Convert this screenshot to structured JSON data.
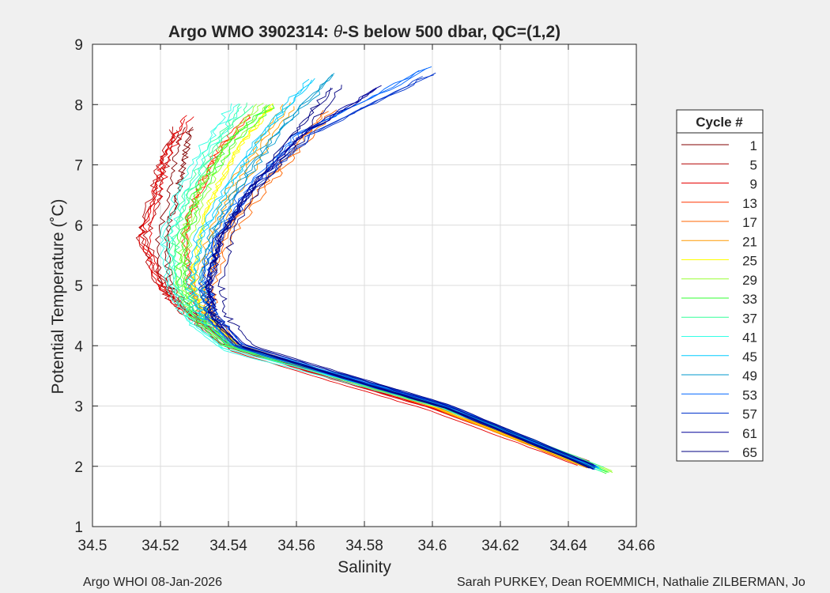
{
  "chart_data": {
    "type": "line",
    "title_prefix": "Argo WMO 3902314: ",
    "title_symbol": "θ",
    "title_suffix": "-S below 500 dbar,  QC=(1,2)",
    "xlabel": "Salinity",
    "ylabel": "Potential Temperature (˚C)",
    "xlim": [
      34.5,
      34.66
    ],
    "ylim": [
      1,
      9
    ],
    "xticks": [
      "34.5",
      "34.52",
      "34.54",
      "34.56",
      "34.58",
      "34.6",
      "34.62",
      "34.64",
      "34.66"
    ],
    "yticks": [
      "1",
      "2",
      "3",
      "4",
      "5",
      "6",
      "7",
      "8",
      "9"
    ],
    "grid": true,
    "legend": {
      "title": "Cycle #",
      "placement": "right-outside",
      "entries": [
        {
          "label": "1",
          "color": "#800000"
        },
        {
          "label": "5",
          "color": "#b30000"
        },
        {
          "label": "9",
          "color": "#e60000"
        },
        {
          "label": "13",
          "color": "#ff3300"
        },
        {
          "label": "17",
          "color": "#ff6600"
        },
        {
          "label": "21",
          "color": "#ff9900"
        },
        {
          "label": "25",
          "color": "#ffff00"
        },
        {
          "label": "29",
          "color": "#99ff33"
        },
        {
          "label": "33",
          "color": "#33ff33"
        },
        {
          "label": "37",
          "color": "#33ff99"
        },
        {
          "label": "41",
          "color": "#33ffe6"
        },
        {
          "label": "45",
          "color": "#00ccff"
        },
        {
          "label": "49",
          "color": "#0099cc"
        },
        {
          "label": "53",
          "color": "#0066ff"
        },
        {
          "label": "57",
          "color": "#0033cc"
        },
        {
          "label": "61",
          "color": "#000099"
        },
        {
          "label": "65",
          "color": "#000080"
        }
      ]
    },
    "series": [
      {
        "name": "1",
        "color": "#800000",
        "x": [
          34.647,
          34.6,
          34.57,
          34.54,
          34.528,
          34.522,
          34.521,
          34.524,
          34.526,
          34.528
        ],
        "y": [
          2.0,
          3.0,
          3.5,
          4.0,
          4.6,
          5.0,
          5.8,
          6.5,
          7.0,
          7.6
        ]
      },
      {
        "name": "5",
        "color": "#b30000",
        "x": [
          34.646,
          34.599,
          34.569,
          34.539,
          34.526,
          34.52,
          34.514,
          34.518,
          34.52,
          34.524
        ],
        "y": [
          2.05,
          3.0,
          3.5,
          4.0,
          4.6,
          5.0,
          5.8,
          6.5,
          7.0,
          7.6
        ]
      },
      {
        "name": "9",
        "color": "#e60000",
        "x": [
          34.643,
          34.6,
          34.57,
          34.541,
          34.527,
          34.52,
          34.515,
          34.519,
          34.522,
          34.528
        ],
        "y": [
          2.05,
          2.95,
          3.45,
          3.95,
          4.6,
          5.0,
          5.8,
          6.6,
          7.2,
          7.8
        ]
      },
      {
        "name": "13",
        "color": "#ff3300",
        "x": [
          34.644,
          34.601,
          34.571,
          34.541,
          34.53,
          34.528,
          34.526,
          34.53,
          34.535,
          34.545
        ],
        "y": [
          2.05,
          3.0,
          3.5,
          4.0,
          4.6,
          5.0,
          5.8,
          6.5,
          7.1,
          7.8
        ]
      },
      {
        "name": "17",
        "color": "#ff6600",
        "x": [
          34.645,
          34.6,
          34.571,
          34.542,
          34.535,
          34.535,
          34.54,
          34.55,
          34.56,
          34.57
        ],
        "y": [
          2.0,
          3.0,
          3.5,
          4.0,
          4.5,
          5.0,
          5.8,
          6.6,
          7.2,
          7.9
        ]
      },
      {
        "name": "21",
        "color": "#ff9900",
        "x": [
          34.645,
          34.6,
          34.571,
          34.542,
          34.534,
          34.532,
          34.536,
          34.542,
          34.55,
          34.558
        ],
        "y": [
          2.0,
          3.0,
          3.5,
          4.0,
          4.5,
          5.0,
          5.8,
          6.6,
          7.3,
          8.0
        ]
      },
      {
        "name": "25",
        "color": "#ffff00",
        "x": [
          34.646,
          34.601,
          34.572,
          34.541,
          34.532,
          34.528,
          34.53,
          34.535,
          34.542,
          34.552
        ],
        "y": [
          2.0,
          3.0,
          3.5,
          4.0,
          4.5,
          5.0,
          5.8,
          6.6,
          7.3,
          8.0
        ]
      },
      {
        "name": "29",
        "color": "#99ff33",
        "x": [
          34.653,
          34.602,
          34.571,
          34.54,
          34.53,
          34.526,
          34.528,
          34.533,
          34.54,
          34.55
        ],
        "y": [
          1.9,
          3.0,
          3.5,
          4.0,
          4.5,
          5.0,
          5.8,
          6.6,
          7.3,
          8.0
        ]
      },
      {
        "name": "33",
        "color": "#33ff33",
        "x": [
          34.652,
          34.603,
          34.571,
          34.54,
          34.531,
          34.527,
          34.527,
          34.532,
          34.54,
          34.553
        ],
        "y": [
          1.9,
          3.0,
          3.5,
          4.0,
          4.5,
          5.0,
          5.8,
          6.6,
          7.3,
          8.0
        ]
      },
      {
        "name": "37",
        "color": "#33ff99",
        "x": [
          34.65,
          34.602,
          34.57,
          34.539,
          34.528,
          34.524,
          34.523,
          34.528,
          34.535,
          34.545
        ],
        "y": [
          1.95,
          3.0,
          3.5,
          4.0,
          4.5,
          5.0,
          5.8,
          6.6,
          7.3,
          8.0
        ]
      },
      {
        "name": "41",
        "color": "#33ffe6",
        "x": [
          34.649,
          34.602,
          34.569,
          34.538,
          34.528,
          34.522,
          34.521,
          34.526,
          34.533,
          34.542
        ],
        "y": [
          1.95,
          3.0,
          3.5,
          3.95,
          4.4,
          5.0,
          5.8,
          6.6,
          7.3,
          8.0
        ]
      },
      {
        "name": "45",
        "color": "#00ccff",
        "x": [
          34.649,
          34.603,
          34.572,
          34.541,
          34.532,
          34.529,
          34.532,
          34.54,
          34.55,
          34.565
        ],
        "y": [
          1.95,
          3.0,
          3.5,
          4.0,
          4.5,
          5.0,
          5.8,
          6.6,
          7.5,
          8.4
        ]
      },
      {
        "name": "49",
        "color": "#0099cc",
        "x": [
          34.648,
          34.603,
          34.572,
          34.542,
          34.533,
          34.531,
          34.534,
          34.542,
          34.553,
          34.57
        ],
        "y": [
          1.98,
          3.0,
          3.5,
          4.0,
          4.5,
          5.0,
          5.8,
          6.6,
          7.5,
          8.5
        ]
      },
      {
        "name": "53",
        "color": "#0066ff",
        "x": [
          34.648,
          34.604,
          34.573,
          34.543,
          34.535,
          34.533,
          34.536,
          34.545,
          34.56,
          34.598
        ],
        "y": [
          1.98,
          3.0,
          3.5,
          4.0,
          4.5,
          5.0,
          5.8,
          6.6,
          7.5,
          8.6
        ]
      },
      {
        "name": "57",
        "color": "#0033cc",
        "x": [
          34.648,
          34.604,
          34.574,
          34.544,
          34.536,
          34.534,
          34.538,
          34.548,
          34.565,
          34.6
        ],
        "y": [
          1.98,
          3.0,
          3.5,
          4.0,
          4.5,
          5.0,
          5.8,
          6.6,
          7.5,
          8.5
        ]
      },
      {
        "name": "61",
        "color": "#000099",
        "x": [
          34.648,
          34.604,
          34.574,
          34.545,
          34.536,
          34.535,
          34.538,
          34.547,
          34.562,
          34.585
        ],
        "y": [
          1.98,
          3.0,
          3.5,
          4.0,
          4.5,
          5.0,
          5.8,
          6.6,
          7.5,
          8.3
        ]
      },
      {
        "name": "65",
        "color": "#000080",
        "x": [
          34.647,
          34.604,
          34.574,
          34.545,
          34.537,
          34.536,
          34.539,
          34.548,
          34.56,
          34.572
        ],
        "y": [
          2.0,
          3.0,
          3.5,
          4.0,
          4.5,
          5.0,
          5.8,
          6.6,
          7.5,
          8.3
        ]
      }
    ]
  },
  "footer": {
    "left": "Argo WHOI 08-Jan-2026",
    "right": "Sarah PURKEY, Dean ROEMMICH, Nathalie ZILBERMAN, Jo"
  }
}
